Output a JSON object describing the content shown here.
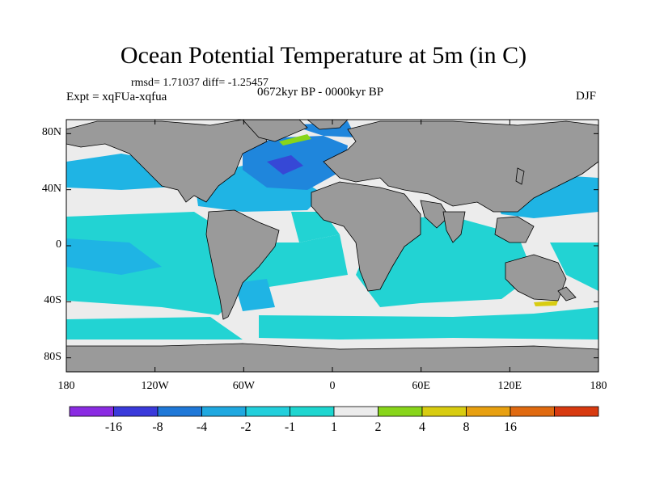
{
  "figure": {
    "title": "Ocean Potential Temperature at 5m (in C)",
    "stats": "rmsd= 1.71037  diff= -1.25457",
    "period": "0672kyr BP - 0000kyr BP",
    "experiment": "Expt = xqFUa-xqfua",
    "season": "DJF"
  },
  "axes": {
    "lat_labels": [
      "80N",
      "40N",
      "0",
      "40S",
      "80S"
    ],
    "lat_values": [
      80,
      40,
      0,
      -40,
      -80
    ],
    "lon_labels": [
      "180",
      "120W",
      "60W",
      "0",
      "60E",
      "120E",
      "180"
    ],
    "lon_values": [
      -180,
      -120,
      -60,
      0,
      60,
      120,
      180
    ],
    "lat_range": [
      -90,
      90
    ],
    "lon_range": [
      -180,
      180
    ]
  },
  "colorbar": {
    "labels": [
      "-16",
      "-8",
      "-4",
      "-2",
      "-1",
      "1",
      "2",
      "4",
      "8",
      "16"
    ],
    "colors": [
      "#8a2be2",
      "#3a3adb",
      "#1f78d8",
      "#1fa8e0",
      "#22cfdc",
      "#1ed6d0",
      "#ececec",
      "#88d51a",
      "#d8cc10",
      "#e8a010",
      "#e06a10",
      "#d83a10"
    ]
  },
  "colors": {
    "land": "#9a9a9a",
    "no_change": "#ececec",
    "cool_1": "#22d3d3",
    "cool_2": "#1fb4e4",
    "cool_4": "#1f86dc",
    "cool_8": "#3648d6",
    "warm_2": "#88d51a",
    "warm_4": "#d8cc10"
  }
}
